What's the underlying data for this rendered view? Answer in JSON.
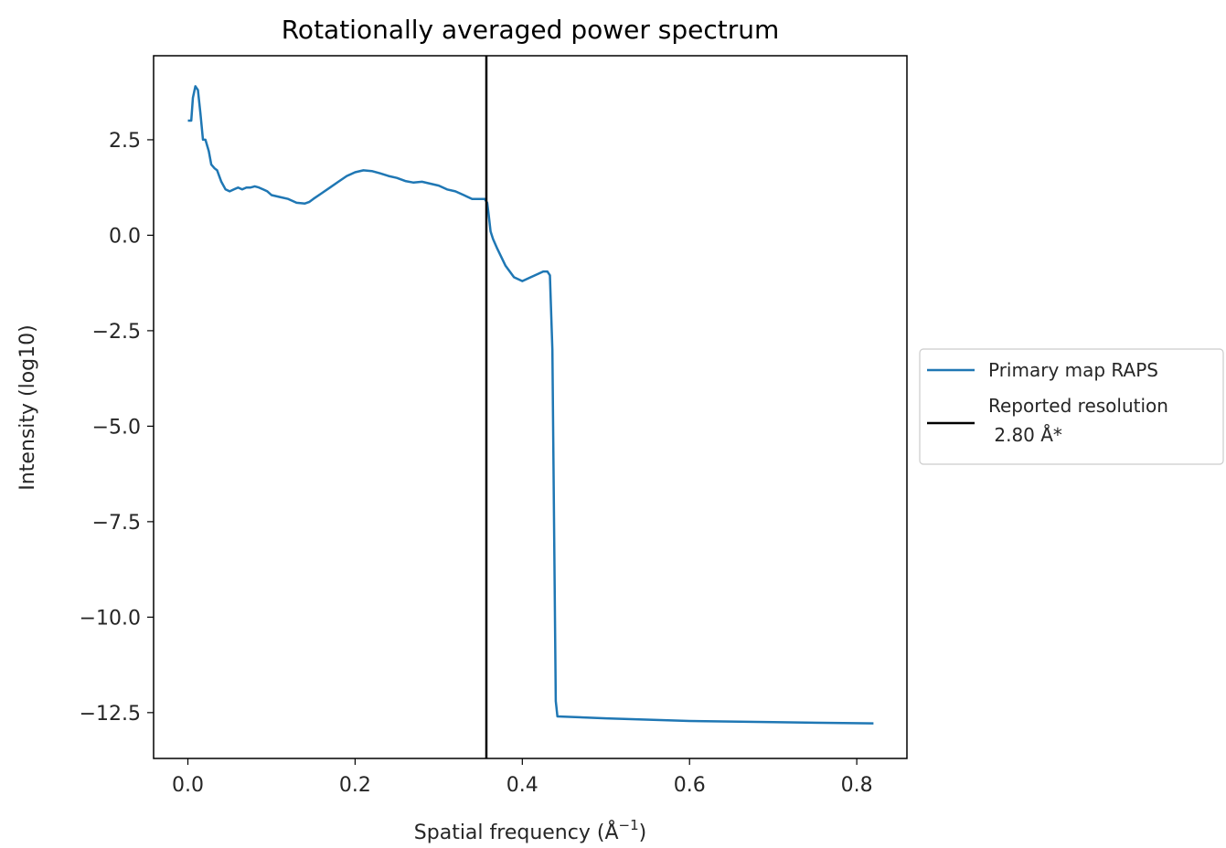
{
  "chart_data": {
    "type": "line",
    "title": "Rotationally averaged power spectrum",
    "xlabel": "Spatial frequency (Å",
    "xlabel_sup": "−1",
    "xlabel_close": ")",
    "ylabel": "Intensity (log10)",
    "xlim": [
      -0.041,
      0.86
    ],
    "ylim": [
      -13.7,
      4.7
    ],
    "xticks": [
      0.0,
      0.2,
      0.4,
      0.6,
      0.8
    ],
    "xtick_labels": [
      "0.0",
      "0.2",
      "0.4",
      "0.6",
      "0.8"
    ],
    "yticks": [
      2.5,
      0.0,
      -2.5,
      -5.0,
      -7.5,
      -10.0,
      -12.5
    ],
    "ytick_labels": [
      "2.5",
      "0.0",
      "−2.5",
      "−5.0",
      "−7.5",
      "−10.0",
      "−12.5"
    ],
    "grid": false,
    "legend_position": "right",
    "series": [
      {
        "name": "Primary map RAPS",
        "color": "#1f77b4",
        "x": [
          0.0,
          0.004,
          0.006,
          0.009,
          0.012,
          0.015,
          0.018,
          0.021,
          0.025,
          0.028,
          0.032,
          0.035,
          0.04,
          0.045,
          0.05,
          0.055,
          0.06,
          0.065,
          0.07,
          0.075,
          0.08,
          0.085,
          0.09,
          0.095,
          0.1,
          0.11,
          0.12,
          0.13,
          0.14,
          0.145,
          0.15,
          0.16,
          0.17,
          0.18,
          0.19,
          0.2,
          0.21,
          0.22,
          0.23,
          0.24,
          0.25,
          0.26,
          0.27,
          0.28,
          0.29,
          0.3,
          0.31,
          0.32,
          0.33,
          0.34,
          0.345,
          0.35,
          0.355,
          0.358,
          0.36,
          0.362,
          0.365,
          0.37,
          0.38,
          0.39,
          0.4,
          0.41,
          0.42,
          0.425,
          0.43,
          0.433,
          0.436,
          0.44,
          0.442,
          0.5,
          0.6,
          0.7,
          0.82
        ],
        "values": [
          3.0,
          3.0,
          3.6,
          3.9,
          3.8,
          3.2,
          2.5,
          2.5,
          2.2,
          1.85,
          1.75,
          1.7,
          1.4,
          1.2,
          1.15,
          1.2,
          1.25,
          1.2,
          1.25,
          1.25,
          1.28,
          1.25,
          1.2,
          1.15,
          1.05,
          1.0,
          0.95,
          0.85,
          0.83,
          0.87,
          0.95,
          1.1,
          1.25,
          1.4,
          1.55,
          1.65,
          1.7,
          1.68,
          1.62,
          1.55,
          1.5,
          1.42,
          1.38,
          1.4,
          1.35,
          1.3,
          1.2,
          1.15,
          1.05,
          0.95,
          0.95,
          0.95,
          0.95,
          0.85,
          0.5,
          0.1,
          -0.1,
          -0.35,
          -0.8,
          -1.1,
          -1.2,
          -1.1,
          -1.0,
          -0.95,
          -0.95,
          -1.05,
          -3.0,
          -12.2,
          -12.6,
          -12.65,
          -12.72,
          -12.75,
          -12.78
        ]
      },
      {
        "name": "Reported resolution\n 2.80 Å*",
        "name_line1": "Reported resolution",
        "name_line2": " 2.80 Å*",
        "color": "#000000",
        "vline_x": 0.357
      }
    ]
  }
}
